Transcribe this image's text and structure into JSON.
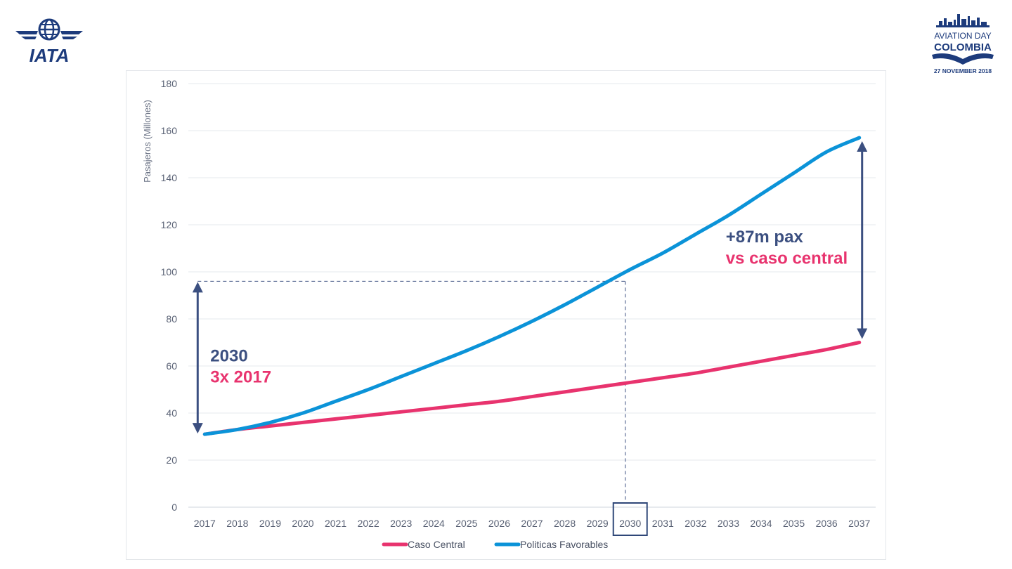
{
  "logos": {
    "iata": {
      "text": "IATA",
      "icon": "iata-globe-wings-icon"
    },
    "event": {
      "line1": "AVIATION DAY",
      "line2": "COLOMBIA",
      "line3": "27 NOVEMBER 2018",
      "icon": "city-skyline-icon"
    }
  },
  "colors": {
    "caso_central": "#e8336e",
    "politicas": "#0b93d8",
    "annotation": "#3b4f80"
  },
  "chart_data": {
    "type": "line",
    "title": "",
    "xlabel": "",
    "ylabel": "Pasajeros (Millones)",
    "ylim": [
      0,
      180
    ],
    "y_ticks": [
      0,
      20,
      40,
      60,
      80,
      100,
      120,
      140,
      160,
      180
    ],
    "grid": true,
    "legend_position": "bottom",
    "x": [
      "2017",
      "2018",
      "2019",
      "2020",
      "2021",
      "2022",
      "2023",
      "2024",
      "2025",
      "2026",
      "2027",
      "2028",
      "2029",
      "2030",
      "2031",
      "2032",
      "2033",
      "2034",
      "2035",
      "2036",
      "2037"
    ],
    "highlight_x": "2030",
    "series": [
      {
        "name": "Caso Central",
        "color": "#e8336e",
        "values": [
          31,
          33,
          34.5,
          36,
          37.5,
          39,
          40.5,
          42,
          43.5,
          45,
          47,
          49,
          51,
          53,
          55,
          57,
          59.5,
          62,
          64.5,
          67,
          70
        ]
      },
      {
        "name": "Politicas Favorables",
        "color": "#0b93d8",
        "values": [
          31,
          33,
          36,
          40,
          45,
          50,
          55.5,
          61,
          66.5,
          72.5,
          79,
          86,
          93.5,
          101,
          108,
          116,
          124,
          133,
          142,
          151,
          157
        ]
      }
    ],
    "annotations": [
      {
        "id": "a2030",
        "line1": "2030",
        "line2": "3x 2017",
        "x_from": "2017",
        "y_from": 31,
        "y_to": 96,
        "x_ref": "2030"
      },
      {
        "id": "a2037",
        "line1": "+87m pax",
        "line2": "vs caso central",
        "x_at": "2037",
        "y_from": 70,
        "y_to": 157
      }
    ]
  }
}
